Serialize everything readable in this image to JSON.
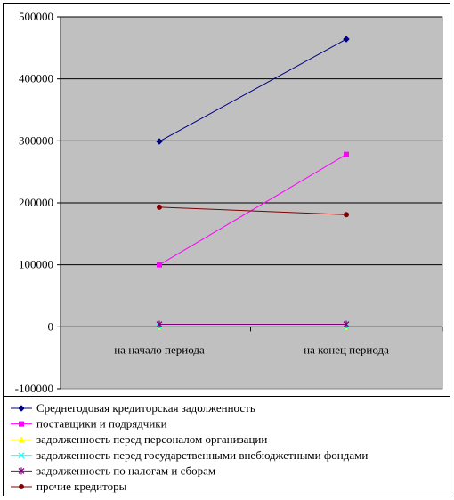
{
  "chart_data": {
    "type": "line",
    "title": "",
    "xlabel": "",
    "ylabel": "",
    "categories": [
      "на начало периода",
      "на конец периода"
    ],
    "ylim": [
      -100000,
      500000
    ],
    "yticks": [
      -100000,
      0,
      100000,
      200000,
      300000,
      400000,
      500000
    ],
    "ytick_labels": [
      "-100000",
      "0",
      "100000",
      "200000",
      "300000",
      "400000",
      "500000"
    ],
    "grid": "horizontal",
    "plot_background": "#c0c0c0",
    "legend_position": "bottom",
    "series": [
      {
        "name": "Среднегодовая кредиторская задолженность",
        "values": [
          299000,
          464000
        ],
        "color": "#000080",
        "marker": "diamond"
      },
      {
        "name": "поставщики и подрядчики",
        "values": [
          100000,
          278000
        ],
        "color": "#ff00ff",
        "marker": "square"
      },
      {
        "name": "задолженность перед персоналом организации",
        "values": [
          0,
          0
        ],
        "color": "#ffff00",
        "marker": "triangle"
      },
      {
        "name": "задолженность перед государственными внебюджетными фондами",
        "values": [
          0,
          0
        ],
        "color": "#00ffff",
        "marker": "x"
      },
      {
        "name": "задолженность по налогам и сборам",
        "values": [
          4000,
          4000
        ],
        "color": "#800080",
        "marker": "star"
      },
      {
        "name": "прочие кредиторы",
        "values": [
          193000,
          181000
        ],
        "color": "#800000",
        "marker": "circle"
      }
    ]
  }
}
